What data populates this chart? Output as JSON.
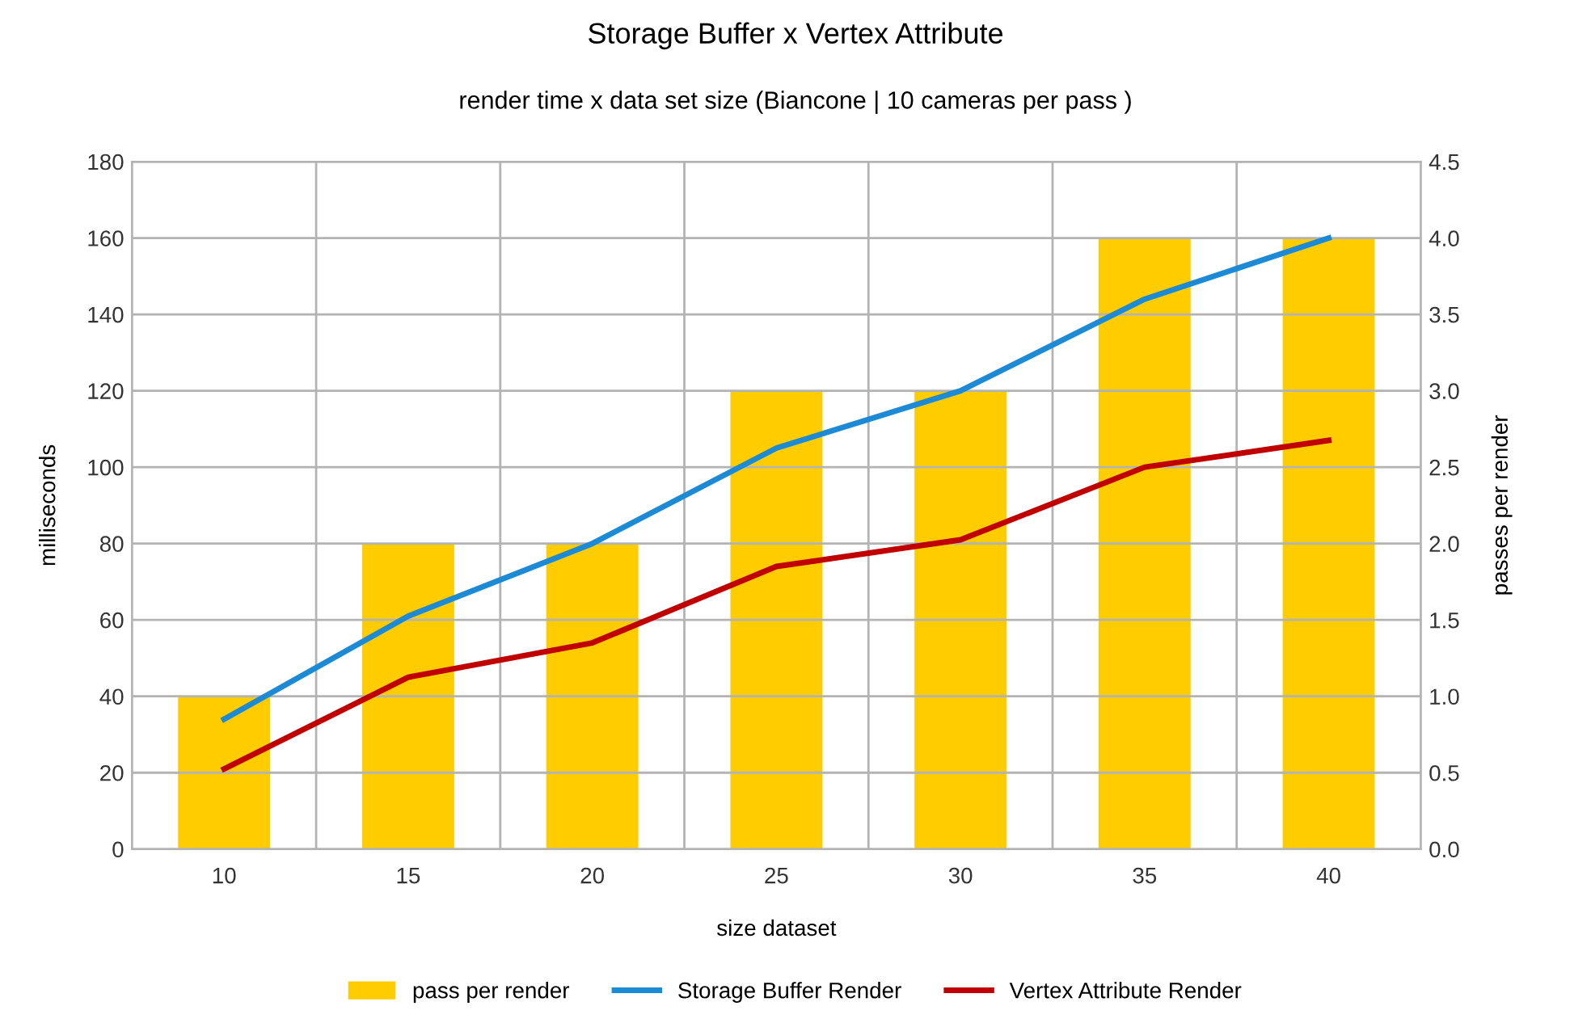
{
  "chart_data": {
    "type": "bar",
    "title": "Storage Buffer x Vertex Attribute",
    "subtitle": "render time x data set size (Biancone | 10 cameras per pass )",
    "xlabel": "size dataset",
    "ylabel": "milliseconds",
    "y2label": "passes per render",
    "categories": [
      "10",
      "15",
      "20",
      "25",
      "30",
      "35",
      "40"
    ],
    "series": [
      {
        "name": "pass per render",
        "axis": "y2",
        "color": "#ffcc00",
        "values": [
          1,
          2,
          2,
          3,
          3,
          4,
          4
        ]
      },
      {
        "name": "Storage Buffer Render",
        "type": "line",
        "color": "#1c8ad4",
        "values": [
          34,
          61,
          80,
          105,
          120,
          144,
          160
        ]
      },
      {
        "name": "Vertex Attribute Render",
        "type": "line",
        "color": "#c00000",
        "values": [
          21,
          45,
          54,
          74,
          81,
          100,
          107
        ]
      }
    ],
    "ylim": [
      0,
      180
    ],
    "yticks": [
      0,
      20,
      40,
      60,
      80,
      100,
      120,
      140,
      160,
      180
    ],
    "y2lim": [
      0,
      4.5
    ],
    "y2ticks": [
      {
        "value": 0,
        "label": "0.0"
      },
      {
        "value": 0.5,
        "label": "0.5"
      },
      {
        "value": 1,
        "label": "1.0"
      },
      {
        "value": 1.5,
        "label": "1.5"
      },
      {
        "value": 2,
        "label": "2.0"
      },
      {
        "value": 2.5,
        "label": "2.5"
      },
      {
        "value": 3,
        "label": "3.0"
      },
      {
        "value": 3.5,
        "label": "3.5"
      },
      {
        "value": 4,
        "label": "4.0"
      },
      {
        "value": 4.5,
        "label": "4.5"
      }
    ],
    "grid": true,
    "legend": "bottom",
    "marker": "none",
    "line_style": "solid"
  }
}
